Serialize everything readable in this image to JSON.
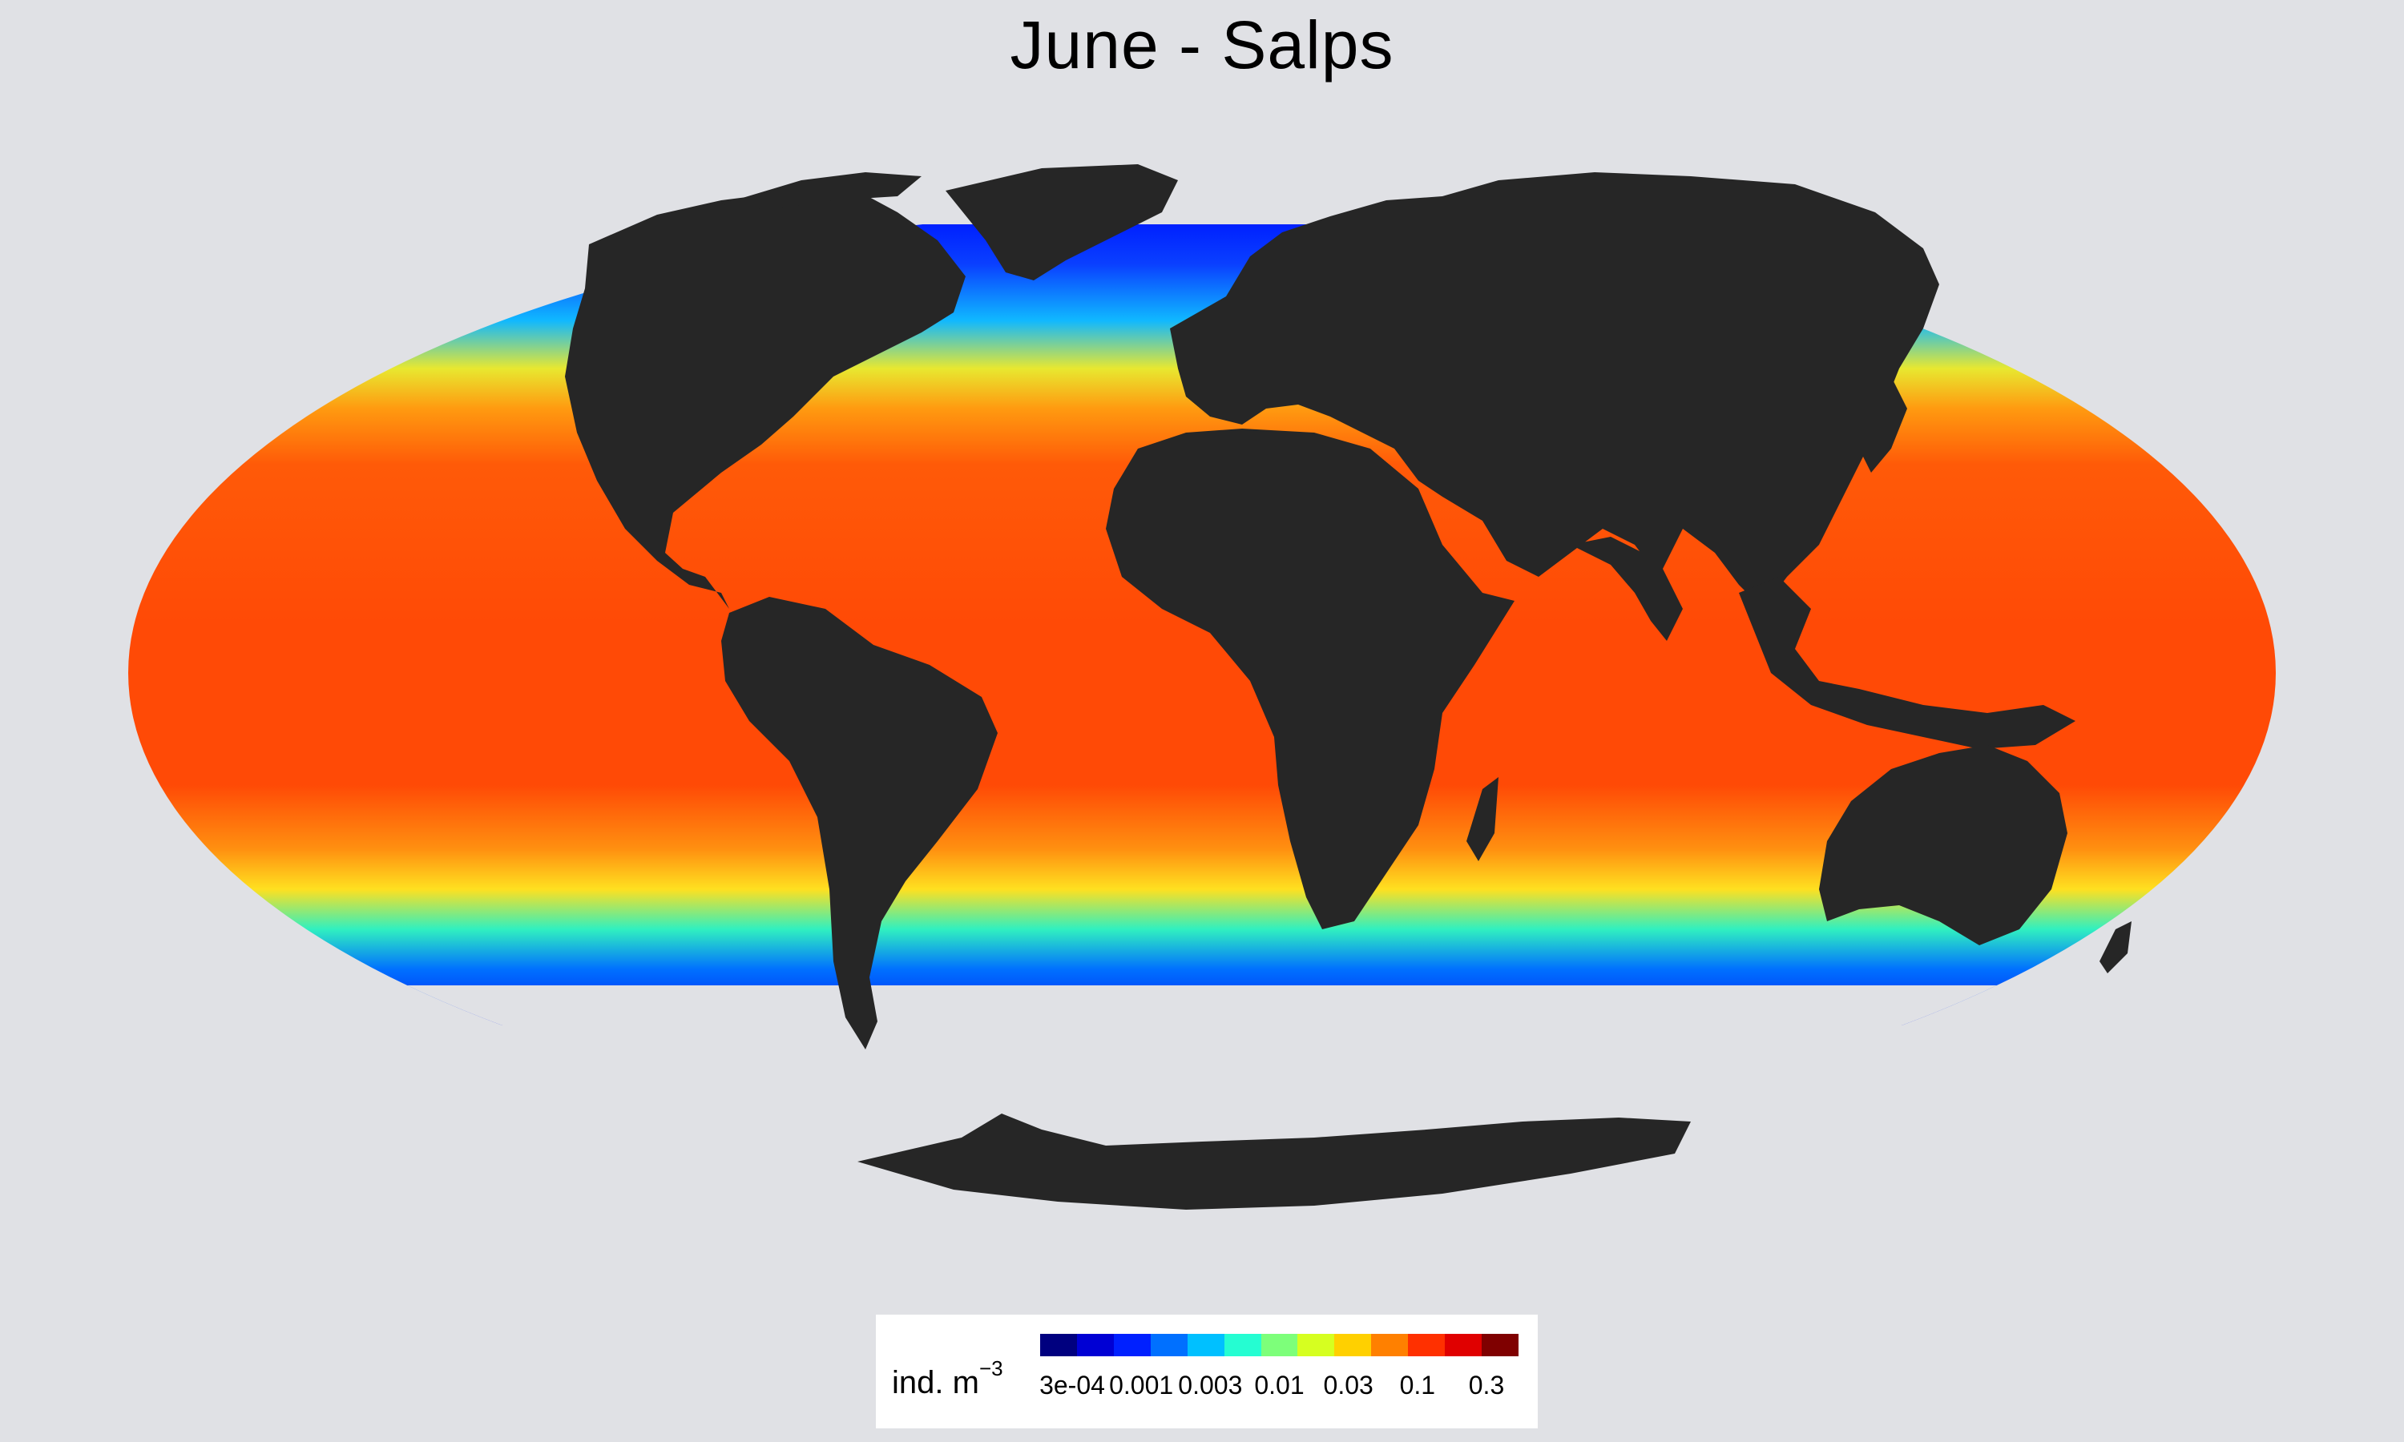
{
  "title": "June - Salps",
  "legend": {
    "title": "ind. m",
    "title_exponent": "−3",
    "ticks": [
      "3e-04",
      "0.001",
      "0.003",
      "0.01",
      "0.03",
      "0.1",
      "0.3"
    ],
    "colors": [
      "#00007f",
      "#0000d4",
      "#0020ff",
      "#0070ff",
      "#00c0ff",
      "#25fdd2",
      "#7dff7a",
      "#d6ff20",
      "#ffd000",
      "#ff8000",
      "#ff3000",
      "#e00000",
      "#7f0000"
    ]
  },
  "map": {
    "projection": "Mollweide",
    "variable": "Salps abundance",
    "month": "June",
    "land_color": "#262626",
    "background_color": "#e0e1e5",
    "ocean_palette": "jet"
  }
}
